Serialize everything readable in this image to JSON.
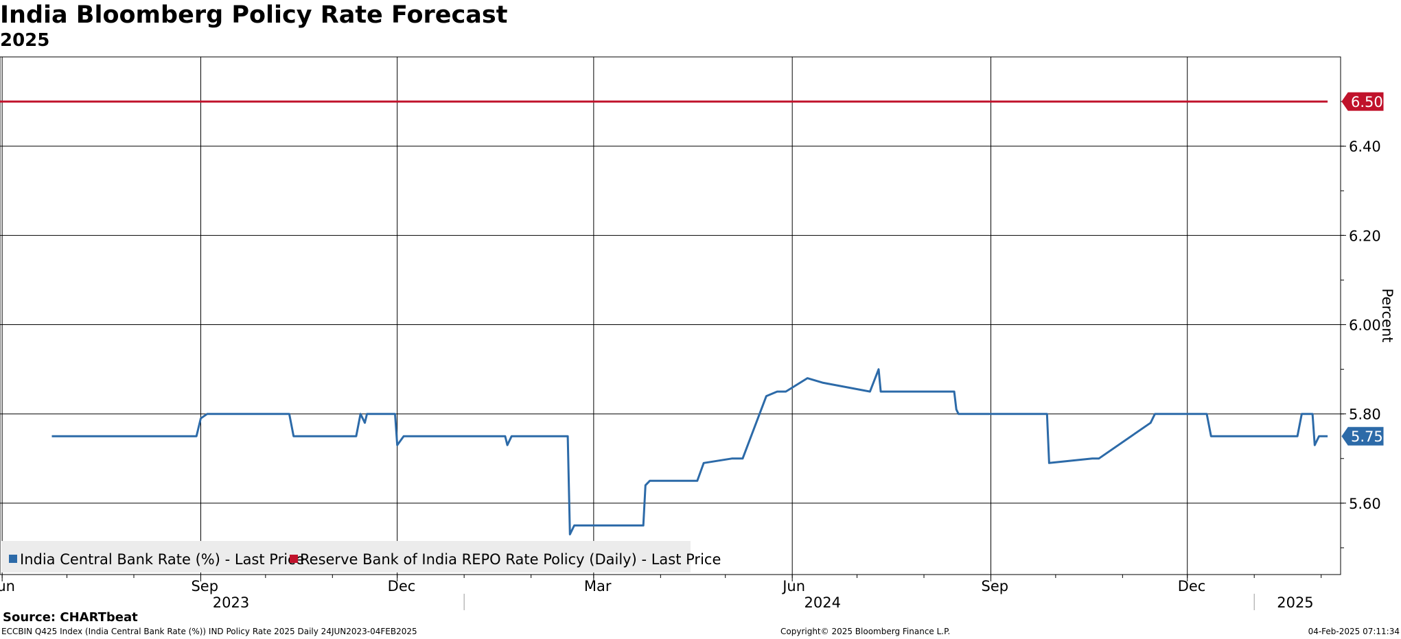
{
  "title": "India Bloomberg Policy Rate Forecast",
  "subtitle": "2025",
  "source": "Source: CHARTbeat",
  "footer": {
    "left": "ECCBIN Q425 Index (India Central Bank Rate (%)) IND Policy Rate 2025  Daily 24JUN2023-04FEB2025",
    "center": "Copyright© 2025 Bloomberg Finance L.P.",
    "right": "04-Feb-2025 07:11:34"
  },
  "colors": {
    "series_blue": "#2c6aa8",
    "series_red": "#c0122b"
  },
  "chart_data": {
    "type": "line",
    "ylabel": "Percent",
    "ylim": [
      5.44,
      6.6
    ],
    "xlim": [
      "2023-05-31",
      "2025-02-10"
    ],
    "grid": true,
    "legend_position": "bottom-left",
    "y_ticks": [
      "6.40",
      "6.20",
      "6.00",
      "5.80",
      "5.60"
    ],
    "x_ticks": [
      {
        "label": "Jun",
        "date": "2023-06-01"
      },
      {
        "label": "Sep",
        "date": "2023-09-01"
      },
      {
        "label": "Dec",
        "date": "2023-12-01"
      },
      {
        "label": "Mar",
        "date": "2024-03-01"
      },
      {
        "label": "Jun",
        "date": "2024-06-01"
      },
      {
        "label": "Sep",
        "date": "2024-09-01"
      },
      {
        "label": "Dec",
        "date": "2024-12-01"
      }
    ],
    "year_labels": [
      {
        "label": "2023",
        "date": "2023-09-15"
      },
      {
        "label": "2024",
        "date": "2024-06-15"
      },
      {
        "label": "2025",
        "date": "2025-01-20"
      }
    ],
    "year_dividers": [
      "2024-01-01",
      "2025-01-01"
    ],
    "series": [
      {
        "name": "India Central Bank Rate (%) - Last Price",
        "color": "#2c6aa8",
        "last_value": "5.75",
        "x": [
          "2023-06-24",
          "2023-08-30",
          "2023-09-01",
          "2023-09-04",
          "2023-10-12",
          "2023-10-14",
          "2023-11-12",
          "2023-11-14",
          "2023-11-16",
          "2023-11-17",
          "2023-11-30",
          "2023-12-01",
          "2023-12-04",
          "2024-01-20",
          "2024-01-21",
          "2024-01-23",
          "2024-02-18",
          "2024-02-19",
          "2024-02-21",
          "2024-03-24",
          "2024-03-25",
          "2024-03-27",
          "2024-04-12",
          "2024-04-13",
          "2024-04-18",
          "2024-04-21",
          "2024-05-04",
          "2024-05-09",
          "2024-05-20",
          "2024-05-25",
          "2024-05-29",
          "2024-06-08",
          "2024-06-15",
          "2024-07-07",
          "2024-07-11",
          "2024-07-12",
          "2024-07-13",
          "2024-08-15",
          "2024-08-16",
          "2024-08-17",
          "2024-08-19",
          "2024-08-23",
          "2024-08-29",
          "2024-09-27",
          "2024-09-28",
          "2024-10-18",
          "2024-10-19",
          "2024-10-21",
          "2024-11-14",
          "2024-11-16",
          "2024-11-17",
          "2024-12-10",
          "2024-12-12",
          "2025-01-21",
          "2025-01-23",
          "2025-01-28",
          "2025-01-29",
          "2025-01-31",
          "2025-02-04"
        ],
        "y": [
          5.75,
          5.75,
          5.79,
          5.8,
          5.8,
          5.75,
          5.75,
          5.8,
          5.78,
          5.8,
          5.8,
          5.73,
          5.75,
          5.75,
          5.73,
          5.75,
          5.75,
          5.53,
          5.55,
          5.55,
          5.64,
          5.65,
          5.65,
          5.65,
          5.65,
          5.69,
          5.7,
          5.7,
          5.84,
          5.85,
          5.85,
          5.88,
          5.87,
          5.85,
          5.9,
          5.85,
          5.85,
          5.85,
          5.81,
          5.8,
          5.8,
          5.8,
          5.8,
          5.8,
          5.69,
          5.7,
          5.7,
          5.7,
          5.78,
          5.8,
          5.8,
          5.8,
          5.75,
          5.75,
          5.8,
          5.8,
          5.73,
          5.75,
          5.75
        ]
      },
      {
        "name": "Reserve Bank of India REPO Rate Policy (Daily) - Last Price",
        "color": "#c0122b",
        "last_value": "6.50",
        "x": [
          "2023-05-31",
          "2025-02-04"
        ],
        "y": [
          6.5,
          6.5
        ]
      }
    ]
  }
}
